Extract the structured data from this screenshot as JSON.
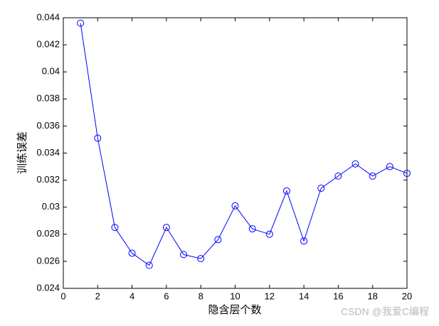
{
  "chart_data": {
    "type": "line",
    "x_label": "隐含层个数",
    "y_label": "训练误差",
    "x": [
      1,
      2,
      3,
      4,
      5,
      6,
      7,
      8,
      9,
      10,
      11,
      12,
      13,
      14,
      15,
      16,
      17,
      18,
      19,
      20
    ],
    "values": [
      0.0436,
      0.0351,
      0.0285,
      0.0266,
      0.0257,
      0.0285,
      0.0265,
      0.0262,
      0.0276,
      0.0301,
      0.0284,
      0.028,
      0.0312,
      0.0275,
      0.0314,
      0.0323,
      0.0332,
      0.0323,
      0.033,
      0.0325
    ],
    "color": "#0000ff",
    "marker": "circle",
    "xlim": [
      0,
      20
    ],
    "xticks": [
      0,
      2,
      4,
      6,
      8,
      10,
      12,
      14,
      16,
      18,
      20
    ],
    "ylim": [
      0.024,
      0.044
    ],
    "yticks": [
      0.024,
      0.026,
      0.028,
      0.03,
      0.032,
      0.034,
      0.036,
      0.038,
      0.04,
      0.042,
      0.044
    ],
    "watermark": "CSDN @我爱C编程"
  }
}
